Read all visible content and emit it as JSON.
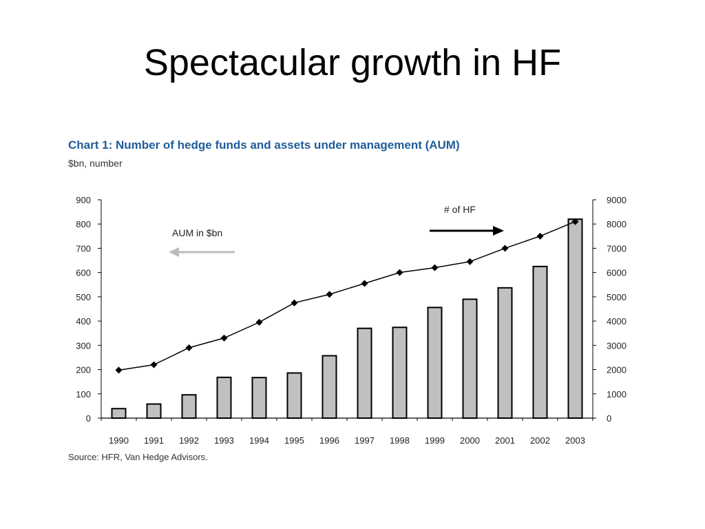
{
  "slide": {
    "title": "Spectacular growth in HF"
  },
  "chart_header": {
    "title": "Chart 1:  Number of hedge funds and assets under management (AUM)",
    "subtitle": "$bn, number",
    "source": "Source: HFR, Van Hedge Advisors."
  },
  "chart_data": {
    "type": "bar",
    "categories": [
      "1990",
      "1991",
      "1992",
      "1993",
      "1994",
      "1995",
      "1996",
      "1997",
      "1998",
      "1999",
      "2000",
      "2001",
      "2002",
      "2003"
    ],
    "series": [
      {
        "name": "AUM in $bn",
        "type": "bar",
        "axis": "left",
        "values": [
          39,
          58,
          96,
          168,
          167,
          186,
          257,
          370,
          374,
          456,
          490,
          537,
          625,
          820
        ]
      },
      {
        "name": "# of HF",
        "type": "line",
        "axis": "right",
        "values": [
          1977,
          2200,
          2900,
          3300,
          3950,
          4750,
          5100,
          5550,
          6000,
          6200,
          6450,
          7000,
          7500,
          8100
        ]
      }
    ],
    "y_left": {
      "ylim": [
        0,
        900
      ],
      "ticks": [
        "0",
        "100",
        "200",
        "300",
        "400",
        "500",
        "600",
        "700",
        "800",
        "900"
      ]
    },
    "y_right": {
      "ylim": [
        0,
        9000
      ],
      "ticks": [
        "0",
        "1000",
        "2000",
        "3000",
        "4000",
        "5000",
        "6000",
        "7000",
        "8000",
        "9000"
      ]
    },
    "annotations": [
      {
        "text": "AUM in $bn",
        "arrow": "left"
      },
      {
        "text": "# of HF",
        "arrow": "right"
      }
    ],
    "grid": false,
    "legend": "none",
    "colors": {
      "bar_fill": "#c0c0c0",
      "bar_stroke": "#000000",
      "line": "#000000",
      "aum_arrow": "#bbbbbb",
      "hf_arrow": "#000000"
    }
  }
}
